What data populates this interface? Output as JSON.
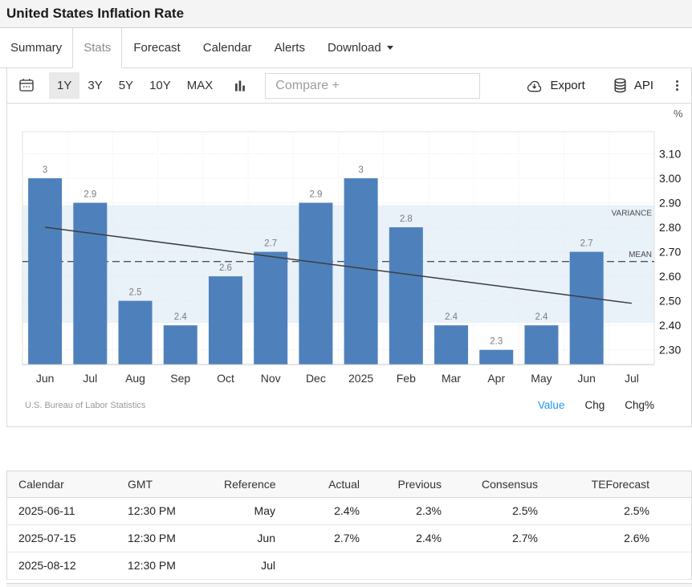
{
  "header": {
    "title": "United States Inflation Rate"
  },
  "tabs": [
    {
      "label": "Summary",
      "boxed": true,
      "active": false
    },
    {
      "label": "Stats",
      "boxed": true,
      "active": true
    },
    {
      "label": "Forecast",
      "boxed": false,
      "active": false
    },
    {
      "label": "Calendar",
      "boxed": false,
      "active": false
    },
    {
      "label": "Alerts",
      "boxed": false,
      "active": false
    },
    {
      "label": "Download",
      "boxed": false,
      "active": false,
      "caret": true
    }
  ],
  "toolbar": {
    "ranges": [
      {
        "label": "1Y",
        "active": true
      },
      {
        "label": "3Y",
        "active": false
      },
      {
        "label": "5Y",
        "active": false
      },
      {
        "label": "10Y",
        "active": false
      },
      {
        "label": "MAX",
        "active": false
      }
    ],
    "compare_placeholder": "Compare +",
    "export_label": "Export",
    "api_label": "API",
    "icons": [
      "calendar-icon",
      "column-chart-icon",
      "cloud-download-icon",
      "database-icon",
      "kebab-menu-icon"
    ]
  },
  "chart_data": {
    "type": "bar",
    "title": "United States Inflation Rate",
    "unit_label": "%",
    "categories": [
      "Jun",
      "Jul",
      "Aug",
      "Sep",
      "Oct",
      "Nov",
      "Dec",
      "2025",
      "Feb",
      "Mar",
      "Apr",
      "May",
      "Jun",
      "Jul"
    ],
    "series": [
      {
        "name": "Inflation Rate",
        "values": [
          3,
          2.9,
          2.5,
          2.4,
          2.6,
          2.7,
          2.9,
          3,
          2.8,
          2.4,
          2.3,
          2.4,
          2.7,
          null
        ]
      }
    ],
    "y_ticks": [
      2.3,
      2.4,
      2.5,
      2.6,
      2.7,
      2.8,
      2.9,
      3.0,
      3.1
    ],
    "ylim": [
      2.24,
      3.19
    ],
    "grid": true,
    "mean": {
      "value": 2.66,
      "label": "MEAN"
    },
    "variance": {
      "low": 2.41,
      "high": 2.89,
      "label": "VARIANCE"
    },
    "trendline": {
      "start": 2.8,
      "end": 2.49
    },
    "bar_color": "#4e81bc",
    "band_color": "#e9f1f9",
    "source": "U.S. Bureau of Labor Statistics",
    "legend": [
      {
        "label": "Value",
        "active": true
      },
      {
        "label": "Chg",
        "active": false
      },
      {
        "label": "Chg%",
        "active": false
      }
    ],
    "legend_position": "bottom-right"
  },
  "table": {
    "headers": [
      "Calendar",
      "GMT",
      "Reference",
      "Actual",
      "Previous",
      "Consensus",
      "TEForecast"
    ],
    "rows": [
      [
        "2025-06-11",
        "12:30 PM",
        "May",
        "2.4%",
        "2.3%",
        "2.5%",
        "2.5%"
      ],
      [
        "2025-07-15",
        "12:30 PM",
        "Jun",
        "2.7%",
        "2.4%",
        "2.7%",
        "2.6%"
      ],
      [
        "2025-08-12",
        "12:30 PM",
        "Jul",
        "",
        "",
        "",
        ""
      ]
    ]
  }
}
